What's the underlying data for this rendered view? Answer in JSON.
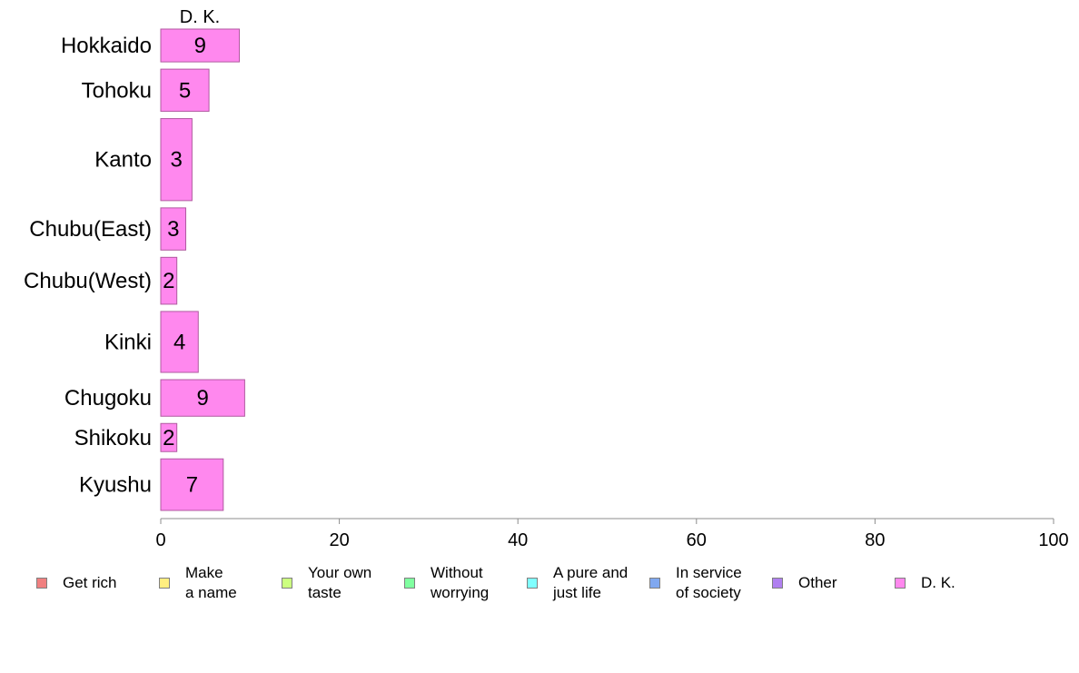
{
  "chart_data": {
    "type": "bar",
    "orientation": "horizontal",
    "stacked": true,
    "categories": [
      "Hokkaido",
      "Tohoku",
      "Kanto",
      "Chubu(East)",
      "Chubu(West)",
      "Kinki",
      "Chugoku",
      "Shikoku",
      "Kyushu"
    ],
    "category_weights": [
      0.7,
      0.9,
      1.75,
      0.9,
      1.0,
      1.3,
      0.78,
      0.6,
      1.1
    ],
    "series": [
      {
        "name": "Get rich",
        "color": "#f08080",
        "values": [
          0,
          0,
          0,
          0,
          0,
          0,
          0,
          0,
          0
        ]
      },
      {
        "name": "Make\na name",
        "color": "#ffee80",
        "values": [
          0,
          0,
          0,
          0,
          0,
          0,
          0,
          0,
          0
        ]
      },
      {
        "name": "Your own\ntaste",
        "color": "#ccff80",
        "values": [
          0,
          0,
          0,
          0,
          0,
          0,
          0,
          0,
          0
        ]
      },
      {
        "name": "Without\nworrying",
        "color": "#80ffa0",
        "values": [
          0,
          0,
          0,
          0,
          0,
          0,
          0,
          0,
          0
        ]
      },
      {
        "name": "A pure and\njust life",
        "color": "#80ffff",
        "values": [
          0,
          0,
          0,
          0,
          0,
          0,
          0,
          0,
          0
        ]
      },
      {
        "name": "In service\nof society",
        "color": "#80a8f0",
        "values": [
          0,
          0,
          0,
          0,
          0,
          0,
          0,
          0,
          0
        ]
      },
      {
        "name": "Other",
        "color": "#b080f0",
        "values": [
          0,
          0,
          0,
          0,
          0,
          0,
          0,
          0,
          0
        ]
      },
      {
        "name": "D. K.",
        "color": "#ff88ee",
        "values": [
          8.8,
          5.4,
          3.5,
          2.8,
          1.8,
          4.2,
          9.4,
          1.8,
          7.0
        ],
        "labels": [
          "9",
          "5",
          "3",
          "3",
          "2",
          "4",
          "9",
          "2",
          "7"
        ]
      }
    ],
    "top_label": "D. K.",
    "xlim": [
      0,
      100
    ],
    "x_ticks": [
      0,
      20,
      40,
      60,
      80,
      100
    ],
    "x_tick_labels": [
      "0",
      "20",
      "40",
      "60",
      "80",
      "100"
    ],
    "grid": false,
    "legend_position": "bottom"
  }
}
